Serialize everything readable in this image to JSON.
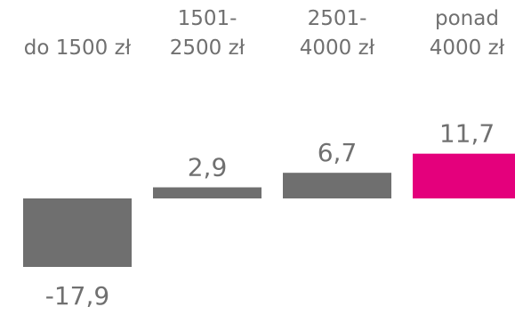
{
  "chart_data": {
    "type": "bar",
    "categories": [
      [
        "do 1500 zł"
      ],
      [
        "1501-",
        "2500 zł"
      ],
      [
        "2501-",
        "4000 zł"
      ],
      [
        "ponad",
        "4000 zł"
      ]
    ],
    "values": [
      -17.9,
      2.9,
      6.7,
      11.7
    ],
    "value_labels": [
      "-17,9",
      "2,9",
      "6,7",
      "11,7"
    ],
    "bar_colors": [
      "#6f6f6f",
      "#6f6f6f",
      "#6f6f6f",
      "#e4007c"
    ],
    "category_label_position": "top",
    "title": "",
    "xlabel": "",
    "ylabel": ""
  }
}
